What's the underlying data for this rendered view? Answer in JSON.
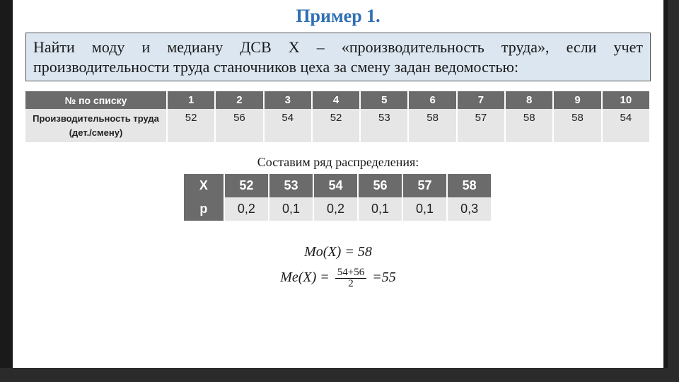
{
  "title": "Пример 1.",
  "problem_text": "Найти моду и медиану ДСВ Х – «производительность труда», если учет производительности труда станочников цеха за смену задан ведомостью:",
  "table1": {
    "row1_label": "№ по списку",
    "row2_label": "Производительность труда  (дет./смену)",
    "headers": [
      "1",
      "2",
      "3",
      "4",
      "5",
      "6",
      "7",
      "8",
      "9",
      "10"
    ],
    "values": [
      "52",
      "56",
      "54",
      "52",
      "53",
      "58",
      "57",
      "58",
      "58",
      "54"
    ],
    "header_bg": "#6b6b6b",
    "header_fg": "#ffffff",
    "cell_bg": "#e6e6e6"
  },
  "subtitle": "Составим ряд распределения:",
  "table2": {
    "row_x_label": "X",
    "row_p_label": "p",
    "x": [
      "52",
      "53",
      "54",
      "56",
      "57",
      "58"
    ],
    "p": [
      "0,2",
      "0,1",
      "0,2",
      "0,1",
      "0,1",
      "0,3"
    ]
  },
  "formula_mo": "Mo(X) = 58",
  "formula_me_left": "Me(X) =",
  "formula_me_num": "54+56",
  "formula_me_den": "2",
  "formula_me_result": "=55",
  "colors": {
    "page_bg": "#1a1a1a",
    "slide_bg": "#ffffff",
    "title_color": "#2e6fb4",
    "box_bg": "#dbe6f0",
    "accent": "#2b2b2b"
  }
}
